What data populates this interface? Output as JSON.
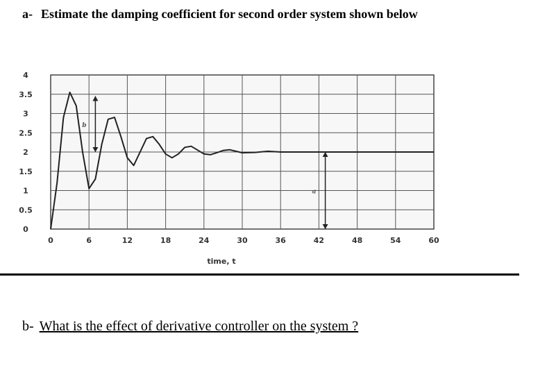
{
  "question_a": {
    "prefix": "a-",
    "text": "Estimate the damping coefficient for second order system shown below"
  },
  "question_b": {
    "prefix": "b-",
    "text": "What is the effect of derivative controller on the system ?"
  },
  "chart_data": {
    "type": "line",
    "title": "",
    "xlabel": "time, t",
    "ylabel": "",
    "xlim": [
      0,
      60
    ],
    "ylim": [
      0,
      4
    ],
    "x_ticks": [
      0,
      6,
      12,
      18,
      24,
      30,
      36,
      42,
      48,
      54,
      60
    ],
    "x_tick_labels": [
      "0",
      "6",
      "12",
      "18",
      "24",
      "30",
      "36",
      "42",
      "48",
      "54",
      "60"
    ],
    "y_ticks": [
      0,
      0.5,
      1,
      1.5,
      2,
      2.5,
      3,
      3.5,
      4
    ],
    "y_tick_labels": [
      "0",
      "0.5",
      "1",
      "1.5",
      "2",
      "2.5",
      "3",
      "3.5",
      "4"
    ],
    "grid": true,
    "series": [
      {
        "x": [
          0,
          1,
          2,
          3,
          4,
          5,
          6,
          7,
          8,
          9,
          10,
          11,
          12,
          13,
          14,
          15,
          16,
          17,
          18,
          19,
          20,
          21,
          22,
          23,
          24,
          25,
          26,
          27,
          28,
          29,
          30,
          32,
          34,
          36,
          38,
          40,
          42,
          44,
          46,
          48,
          50,
          52,
          54,
          56,
          58,
          60
        ],
        "y": [
          0,
          1.2,
          2.9,
          3.55,
          3.2,
          2.0,
          1.05,
          1.3,
          2.2,
          2.85,
          2.9,
          2.4,
          1.85,
          1.65,
          2.0,
          2.35,
          2.4,
          2.2,
          1.95,
          1.85,
          1.95,
          2.12,
          2.15,
          2.05,
          1.95,
          1.93,
          1.98,
          2.04,
          2.06,
          2.02,
          1.98,
          1.99,
          2.02,
          2.0,
          2.0,
          2.0,
          2.0,
          2.0,
          2.0,
          2.0,
          2.0,
          2.0,
          2.0,
          2.0,
          2.0,
          2.0
        ]
      }
    ],
    "annotations": [
      {
        "label": "b",
        "x": 7,
        "y_from": 2.0,
        "y_to": 3.45
      },
      {
        "label": "a",
        "x": 43,
        "y_from": 0,
        "y_to": 2.0
      }
    ]
  }
}
